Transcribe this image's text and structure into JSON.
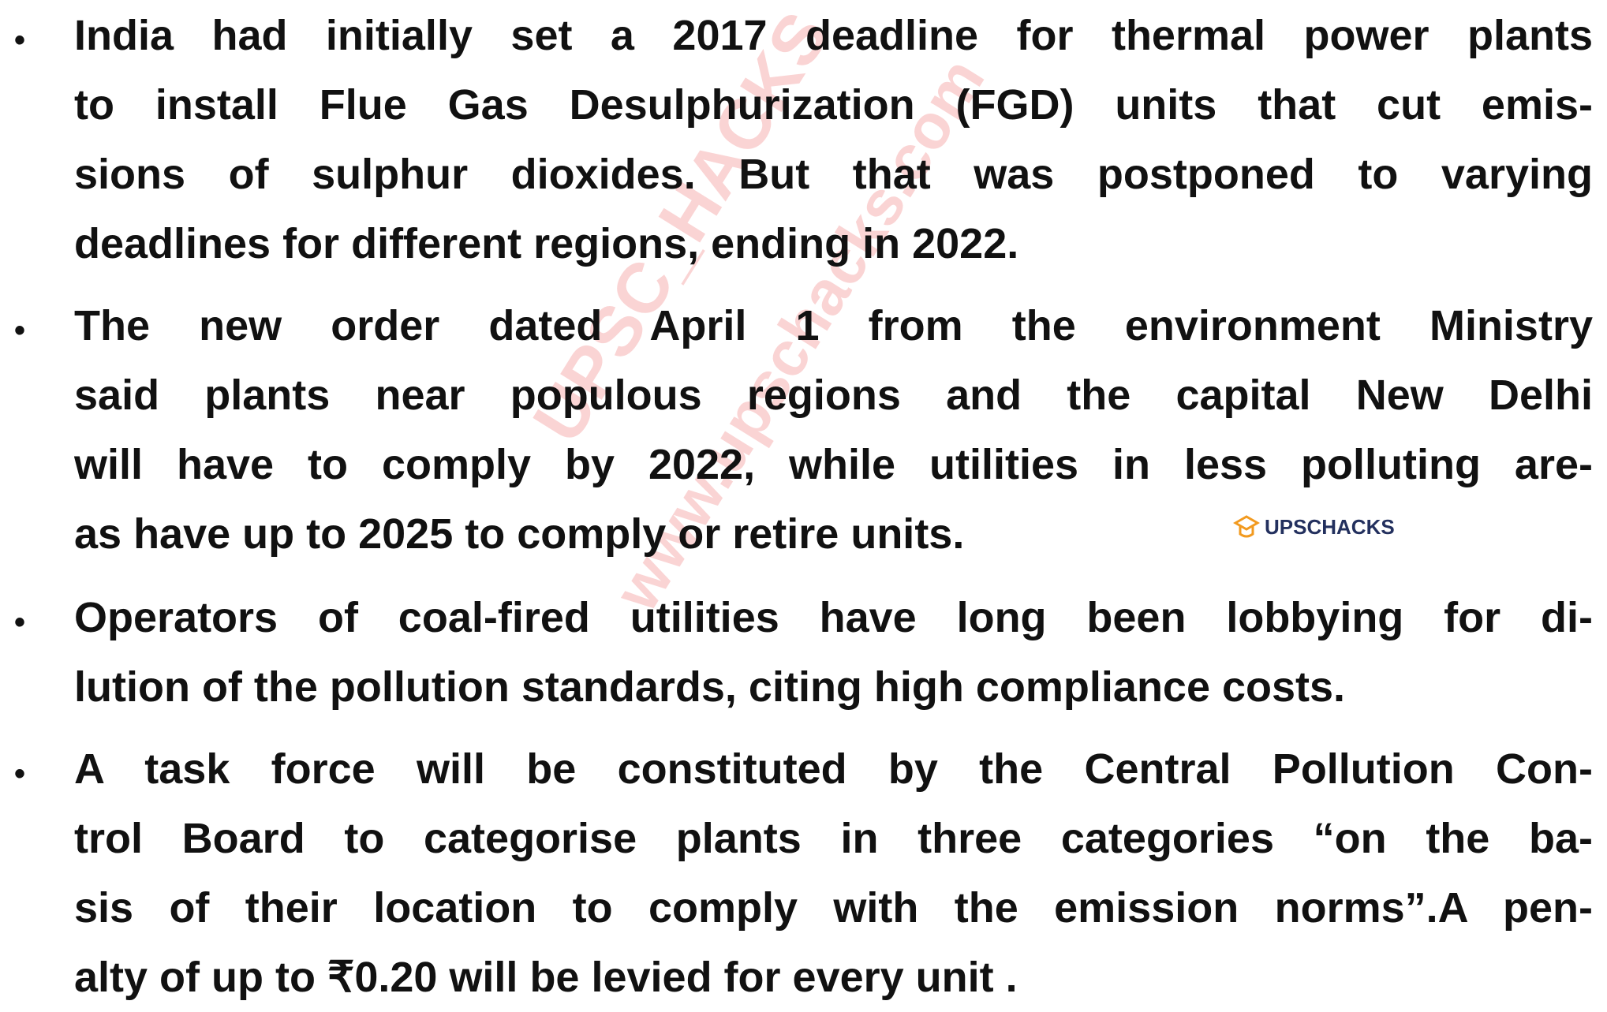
{
  "bullets": [
    {
      "lines": [
        "India had initially set a 2017 deadline for thermal power plants",
        "to install Flue Gas Desulphurization (FGD) units that cut emis-",
        "sions of sulphur dioxides. But that was postponed to varying",
        "deadlines for different regions, ending in 2022."
      ]
    },
    {
      "lines": [
        "The new order dated April 1 from the environment Ministry",
        "said plants near populous regions and the capital New Delhi",
        "will have to comply by 2022, while utilities in less polluting are-",
        "as have up to 2025 to comply or retire units."
      ]
    },
    {
      "lines": [
        "Operators of coal-fired utilities have long been lobbying for di-",
        "lution of the pollution standards, citing high compliance costs."
      ]
    },
    {
      "lines": [
        "A task force will be constituted by the Central Pollution Con-",
        "trol Board to categorise plants in three categories “on the ba-",
        "sis of their location to comply with the emission norms”.A pen-",
        "alty of up to ₹0.20 will be levied for every unit ."
      ]
    }
  ],
  "logo": "UPSCHACKS",
  "watermark": [
    "UPSC_HACKS",
    "www.upschacks.com"
  ]
}
